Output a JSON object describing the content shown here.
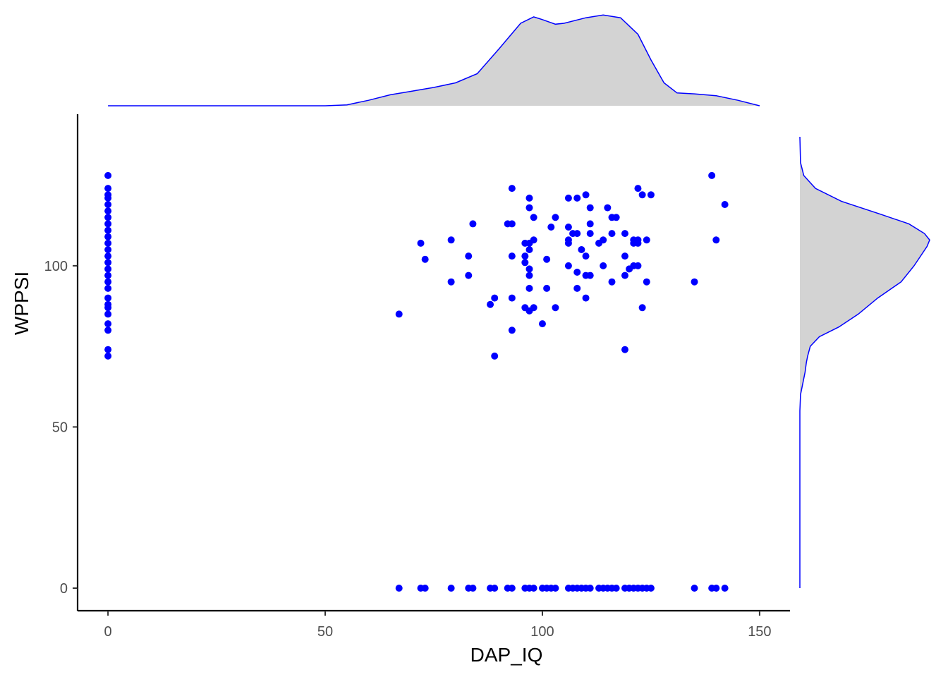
{
  "chart_data": {
    "type": "scatter",
    "xlabel": "DAP_IQ",
    "ylabel": "WPPSI",
    "xlim": [
      -7,
      157
    ],
    "ylim": [
      -7,
      147
    ],
    "x_ticks": [
      0,
      50,
      100,
      150
    ],
    "y_ticks": [
      0,
      50,
      100
    ],
    "grid": false,
    "marginal": "density",
    "point_color": "#0000ff",
    "density_fill": "#d3d3d3",
    "density_line": "#0000ff",
    "series": [
      {
        "points": [
          [
            0,
            128
          ],
          [
            0,
            124
          ],
          [
            0,
            122
          ],
          [
            0,
            121
          ],
          [
            0,
            119
          ],
          [
            0,
            117
          ],
          [
            0,
            115
          ],
          [
            0,
            113
          ],
          [
            0,
            111
          ],
          [
            0,
            109
          ],
          [
            0,
            107
          ],
          [
            0,
            105
          ],
          [
            0,
            103
          ],
          [
            0,
            101
          ],
          [
            0,
            99
          ],
          [
            0,
            97
          ],
          [
            0,
            95
          ],
          [
            0,
            93
          ],
          [
            0,
            90
          ],
          [
            0,
            88
          ],
          [
            0,
            87
          ],
          [
            0,
            85
          ],
          [
            0,
            82
          ],
          [
            0,
            80
          ],
          [
            0,
            74
          ],
          [
            0,
            72
          ],
          [
            67,
            85
          ],
          [
            72,
            107
          ],
          [
            73,
            102
          ],
          [
            79,
            108
          ],
          [
            79,
            95
          ],
          [
            83,
            103
          ],
          [
            83,
            97
          ],
          [
            84,
            113
          ],
          [
            88,
            88
          ],
          [
            89,
            90
          ],
          [
            89,
            72
          ],
          [
            92,
            113
          ],
          [
            93,
            124
          ],
          [
            93,
            113
          ],
          [
            93,
            103
          ],
          [
            93,
            90
          ],
          [
            93,
            80
          ],
          [
            96,
            107
          ],
          [
            96,
            103
          ],
          [
            96,
            101
          ],
          [
            96,
            87
          ],
          [
            97,
            121
          ],
          [
            97,
            118
          ],
          [
            97,
            107
          ],
          [
            97,
            105
          ],
          [
            97,
            99
          ],
          [
            97,
            97
          ],
          [
            97,
            93
          ],
          [
            97,
            86
          ],
          [
            98,
            115
          ],
          [
            98,
            108
          ],
          [
            98,
            87
          ],
          [
            100,
            82
          ],
          [
            101,
            102
          ],
          [
            101,
            93
          ],
          [
            102,
            112
          ],
          [
            103,
            115
          ],
          [
            103,
            87
          ],
          [
            106,
            121
          ],
          [
            106,
            112
          ],
          [
            106,
            108
          ],
          [
            106,
            107
          ],
          [
            106,
            100
          ],
          [
            107,
            110
          ],
          [
            108,
            121
          ],
          [
            108,
            110
          ],
          [
            108,
            98
          ],
          [
            108,
            93
          ],
          [
            109,
            105
          ],
          [
            110,
            122
          ],
          [
            110,
            103
          ],
          [
            110,
            97
          ],
          [
            110,
            90
          ],
          [
            111,
            118
          ],
          [
            111,
            113
          ],
          [
            111,
            110
          ],
          [
            111,
            97
          ],
          [
            113,
            107
          ],
          [
            114,
            108
          ],
          [
            114,
            100
          ],
          [
            115,
            118
          ],
          [
            116,
            115
          ],
          [
            116,
            110
          ],
          [
            116,
            95
          ],
          [
            117,
            115
          ],
          [
            119,
            110
          ],
          [
            119,
            103
          ],
          [
            119,
            97
          ],
          [
            119,
            74
          ],
          [
            120,
            99
          ],
          [
            121,
            108
          ],
          [
            121,
            107
          ],
          [
            121,
            100
          ],
          [
            122,
            124
          ],
          [
            122,
            108
          ],
          [
            122,
            107
          ],
          [
            122,
            100
          ],
          [
            123,
            122
          ],
          [
            123,
            87
          ],
          [
            124,
            108
          ],
          [
            124,
            95
          ],
          [
            125,
            122
          ],
          [
            135,
            95
          ],
          [
            139,
            128
          ],
          [
            140,
            108
          ],
          [
            142,
            119
          ],
          [
            67,
            0
          ],
          [
            72,
            0
          ],
          [
            73,
            0
          ],
          [
            79,
            0
          ],
          [
            83,
            0
          ],
          [
            84,
            0
          ],
          [
            88,
            0
          ],
          [
            89,
            0
          ],
          [
            92,
            0
          ],
          [
            93,
            0
          ],
          [
            96,
            0
          ],
          [
            97,
            0
          ],
          [
            98,
            0
          ],
          [
            100,
            0
          ],
          [
            101,
            0
          ],
          [
            102,
            0
          ],
          [
            103,
            0
          ],
          [
            106,
            0
          ],
          [
            107,
            0
          ],
          [
            108,
            0
          ],
          [
            109,
            0
          ],
          [
            110,
            0
          ],
          [
            111,
            0
          ],
          [
            113,
            0
          ],
          [
            114,
            0
          ],
          [
            115,
            0
          ],
          [
            116,
            0
          ],
          [
            117,
            0
          ],
          [
            119,
            0
          ],
          [
            120,
            0
          ],
          [
            121,
            0
          ],
          [
            122,
            0
          ],
          [
            123,
            0
          ],
          [
            124,
            0
          ],
          [
            125,
            0
          ],
          [
            135,
            0
          ],
          [
            139,
            0
          ],
          [
            140,
            0
          ],
          [
            142,
            0
          ]
        ]
      }
    ],
    "x_density": [
      [
        0,
        0.0
      ],
      [
        50,
        0.0
      ],
      [
        55,
        0.01
      ],
      [
        60,
        0.06
      ],
      [
        65,
        0.12
      ],
      [
        70,
        0.16
      ],
      [
        75,
        0.2
      ],
      [
        80,
        0.25
      ],
      [
        85,
        0.35
      ],
      [
        90,
        0.62
      ],
      [
        95,
        0.9
      ],
      [
        98,
        0.97
      ],
      [
        100,
        0.94
      ],
      [
        103,
        0.89
      ],
      [
        105,
        0.9
      ],
      [
        110,
        0.96
      ],
      [
        114,
        0.99
      ],
      [
        118,
        0.96
      ],
      [
        122,
        0.78
      ],
      [
        125,
        0.5
      ],
      [
        128,
        0.25
      ],
      [
        131,
        0.14
      ],
      [
        135,
        0.13
      ],
      [
        140,
        0.11
      ],
      [
        145,
        0.06
      ],
      [
        150,
        0.0
      ]
    ],
    "y_density": [
      [
        0,
        0.0
      ],
      [
        55,
        0.0
      ],
      [
        60,
        0.005
      ],
      [
        63,
        0.02
      ],
      [
        67,
        0.04
      ],
      [
        70,
        0.05
      ],
      [
        72,
        0.06
      ],
      [
        75,
        0.08
      ],
      [
        78,
        0.15
      ],
      [
        81,
        0.3
      ],
      [
        85,
        0.45
      ],
      [
        90,
        0.6
      ],
      [
        95,
        0.78
      ],
      [
        100,
        0.88
      ],
      [
        103,
        0.93
      ],
      [
        106,
        0.98
      ],
      [
        108,
        1.0
      ],
      [
        110,
        0.96
      ],
      [
        113,
        0.84
      ],
      [
        116,
        0.62
      ],
      [
        120,
        0.32
      ],
      [
        124,
        0.12
      ],
      [
        128,
        0.03
      ],
      [
        132,
        0.005
      ],
      [
        140,
        0.0
      ]
    ]
  }
}
